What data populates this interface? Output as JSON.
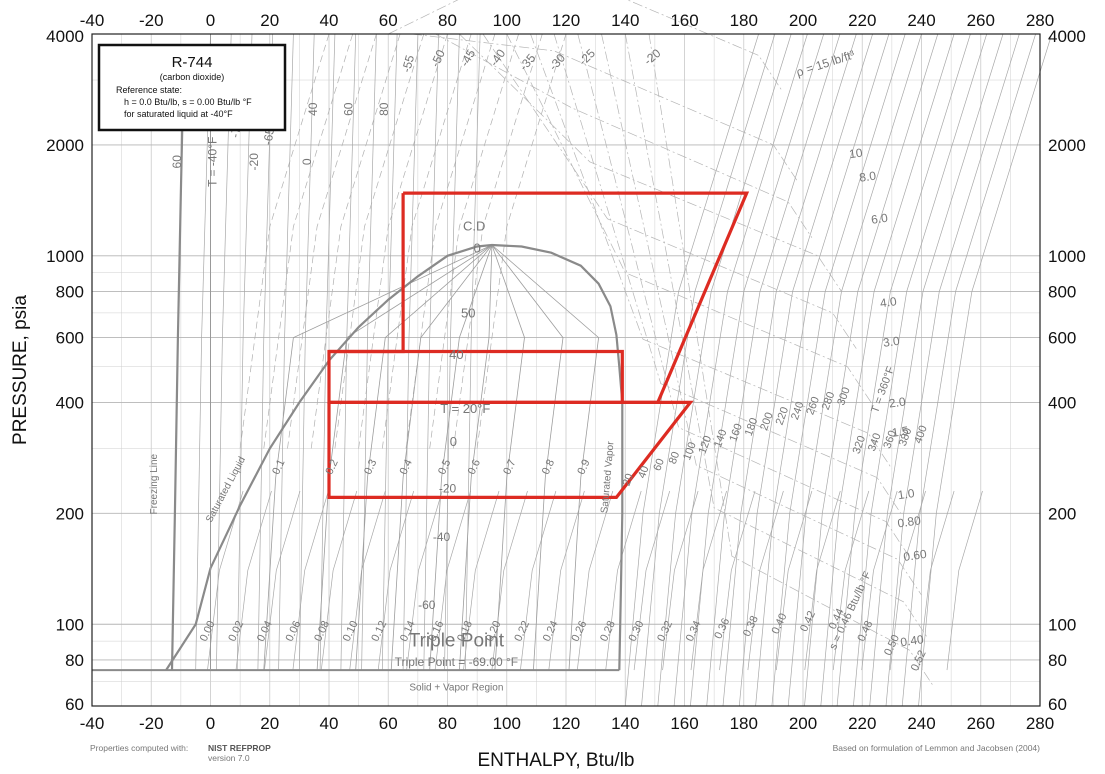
{
  "chart_data": {
    "type": "line",
    "title": "R-744",
    "subtitle": "(carbon dioxide)",
    "reference_state": {
      "heading": "Reference state:",
      "line1": "h = 0.0 Btu/lb,    s = 0.00 Btu/lb °F",
      "line2": "for saturated liquid at -40°F"
    },
    "xlabel": "ENTHALPY, Btu/lb",
    "ylabel": "PRESSURE, psia",
    "xlim": [
      -40,
      280
    ],
    "ylim": [
      60,
      4000
    ],
    "yscale": "log",
    "x_ticks": [
      "-40",
      "-20",
      "0",
      "20",
      "40",
      "60",
      "80",
      "100",
      "120",
      "140",
      "160",
      "180",
      "200",
      "220",
      "240",
      "260",
      "280"
    ],
    "y_ticks": [
      "60",
      "80",
      "100",
      "200",
      "400",
      "600",
      "800",
      "1000",
      "2000",
      "4000"
    ],
    "x_tick_values": [
      -40,
      -20,
      0,
      20,
      40,
      60,
      80,
      100,
      120,
      140,
      160,
      180,
      200,
      220,
      240,
      260,
      280
    ],
    "y_tick_values": [
      60,
      80,
      100,
      200,
      400,
      600,
      800,
      1000,
      2000,
      4000
    ],
    "grid": true,
    "saturation_dome": {
      "liquid": [
        [
          -15,
          75.1
        ],
        [
          -5,
          100
        ],
        [
          0,
          142
        ],
        [
          10,
          210
        ],
        [
          20,
          300
        ],
        [
          30,
          400
        ],
        [
          40,
          520
        ],
        [
          50,
          640
        ],
        [
          60,
          760
        ],
        [
          70,
          880
        ],
        [
          80,
          1000
        ],
        [
          90,
          1060
        ],
        [
          95,
          1070
        ]
      ],
      "vapor": [
        [
          95,
          1070
        ],
        [
          105,
          1060
        ],
        [
          115,
          1020
        ],
        [
          125,
          940
        ],
        [
          131,
          840
        ],
        [
          135,
          730
        ],
        [
          137,
          610
        ],
        [
          138,
          500
        ],
        [
          139,
          400
        ],
        [
          139,
          300
        ],
        [
          139,
          200
        ],
        [
          138.5,
          120
        ],
        [
          138,
          75.1
        ]
      ]
    },
    "freezing_line": [
      [
        -13,
        75.1
      ],
      [
        -12,
        200
      ],
      [
        -11,
        600
      ],
      [
        -10,
        1500
      ],
      [
        -9,
        3500
      ]
    ],
    "triple_point_line": {
      "y": 75.1,
      "x_from": -40,
      "x_to": 138
    },
    "cycles": [
      {
        "points": [
          [
            65,
            1480
          ],
          [
            181,
            1480
          ],
          [
            151,
            400
          ],
          [
            40,
            400
          ],
          [
            40,
            550
          ],
          [
            65,
            550
          ],
          [
            65,
            1480
          ]
        ]
      },
      {
        "points": [
          [
            40,
            550
          ],
          [
            139,
            550
          ],
          [
            139,
            400
          ]
        ]
      },
      {
        "points": [
          [
            40,
            400
          ],
          [
            162,
            400
          ],
          [
            137,
            221
          ],
          [
            40,
            221
          ],
          [
            40,
            400
          ]
        ]
      }
    ],
    "quality_labels": [
      "0.1",
      "0.2",
      "0.3",
      "0.4",
      "0.5",
      "0.6",
      "0.7",
      "0.8",
      "0.9"
    ],
    "quality_x": [
      22,
      40,
      53,
      65,
      78,
      88,
      100,
      113,
      125
    ],
    "isotherm_labels_left": [
      "60",
      "T = -40°F",
      "-20",
      "0",
      "-65",
      "-70",
      "40",
      "60",
      "80",
      "-55",
      "-50",
      "-45",
      "-40",
      "-35",
      "-30",
      "-25",
      "-20"
    ],
    "dome_temp_labels": [
      "C.D",
      "0",
      "50",
      "40",
      "T = 20°F",
      "0",
      "-20",
      "-40",
      "-60"
    ],
    "isotherm_labels_right": [
      "20",
      "40",
      "60",
      "80",
      "100",
      "120",
      "140",
      "160",
      "180",
      "200",
      "220",
      "240",
      "260",
      "280",
      "300",
      "320",
      "340",
      "360",
      "380",
      "400",
      "T = 360°F"
    ],
    "entropy_labels": [
      "0.00",
      "0.02",
      "0.04",
      "0.06",
      "0.08",
      "0.10",
      "0.12",
      "0.14",
      "0.16",
      "0.18",
      "0.20",
      "0.22",
      "0.24",
      "0.26",
      "0.28",
      "0.30",
      "0.32",
      "0.34",
      "0.36",
      "0.38",
      "0.40",
      "0.42",
      "0.44",
      "s = 0.46 Btu/lb °F",
      "0.48",
      "0.50",
      "0.52"
    ],
    "density_labels": [
      "ρ = 15 lb/ft³",
      "10",
      "8.0",
      "6.0",
      "4.0",
      "3.0",
      "2.0",
      "1.5",
      "1.0",
      "0.80",
      "0.60",
      "0.40"
    ],
    "region_labels": {
      "freezing": "Freezing Line",
      "sat_liquid": "Saturated Liquid",
      "sat_vapor": "Saturated Vapor",
      "triple_big": "Triple Point",
      "triple_value": "Triple Point = -69.00 °F",
      "solid_vapor": "Solid + Vapor Region"
    },
    "cycle_color": "#dd2b22",
    "grid_color": "#cfcfcf",
    "line_color": "#9a9a9a"
  },
  "footer": {
    "left_prefix": "Properties computed with:",
    "left_bold": "NIST REFPROP",
    "left_version": "version 7.0",
    "right": "Based on formulation of Lemmon and Jacobsen (2004)"
  }
}
